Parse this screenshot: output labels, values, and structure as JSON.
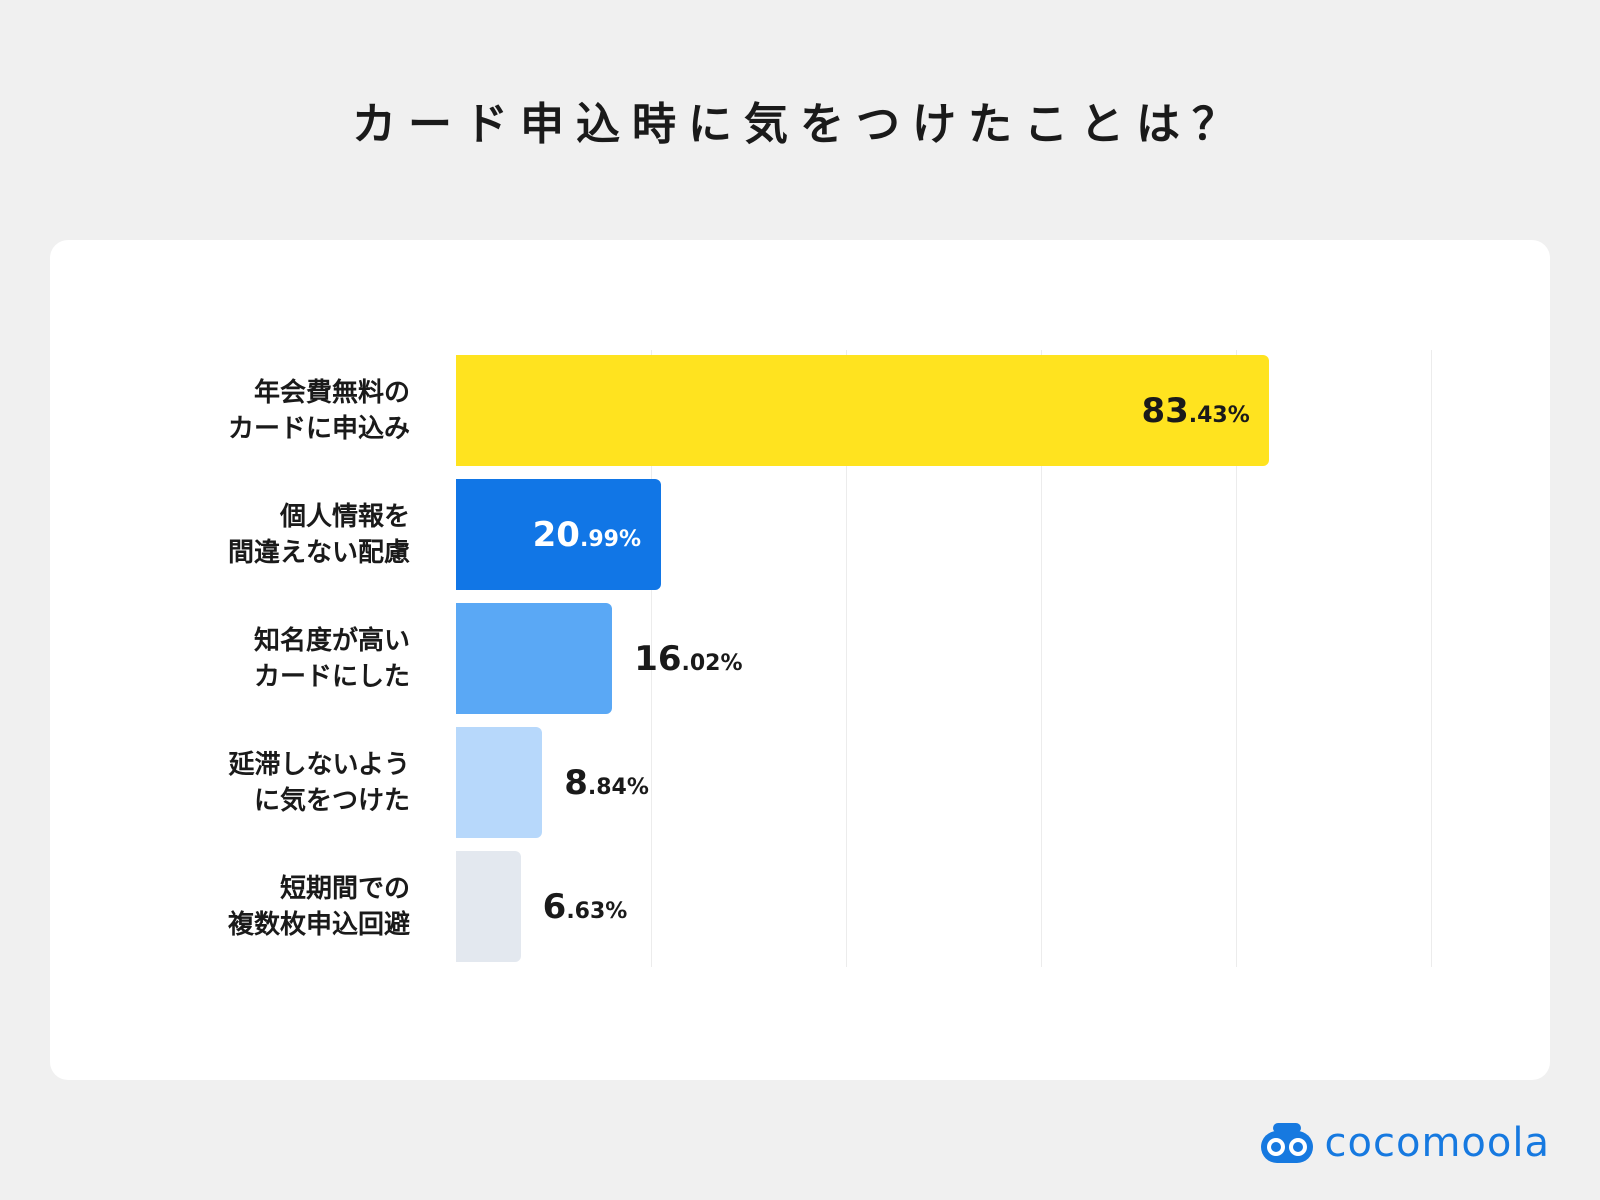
{
  "title": "カード申込時に気をつけたことは？",
  "chart_data": {
    "type": "bar",
    "orientation": "horizontal",
    "title": "カード申込時に気をつけたことは？",
    "categories": [
      [
        "年会費無料の",
        "カードに申込み"
      ],
      [
        "個人情報を",
        "間違えない配慮"
      ],
      [
        "知名度が高い",
        "カードにした"
      ],
      [
        "延滞しないよう",
        "に気をつけた"
      ],
      [
        "短期間での",
        "複数枚申込回避"
      ]
    ],
    "values": [
      83.43,
      20.99,
      16.02,
      8.84,
      6.63
    ],
    "value_labels": [
      {
        "int": "83",
        "dec": ".43%"
      },
      {
        "int": "20",
        "dec": ".99%"
      },
      {
        "int": "16",
        "dec": ".02%"
      },
      {
        "int": "8",
        "dec": ".84%"
      },
      {
        "int": "6",
        "dec": ".63%"
      }
    ],
    "unit": "%",
    "xlim": [
      0,
      100
    ],
    "grid": true,
    "colors": [
      "#ffe31f",
      "#1176e6",
      "#5aa8f5",
      "#b7d8fb",
      "#e3e8ef"
    ],
    "label_colors": [
      "#1a1a1a",
      "#ffffff",
      "#1a1a1a",
      "#1a1a1a",
      "#1a1a1a"
    ]
  },
  "brand": {
    "name": "cocomoola",
    "logo_icon": "binoculars-icon",
    "color": "#1679e0"
  }
}
